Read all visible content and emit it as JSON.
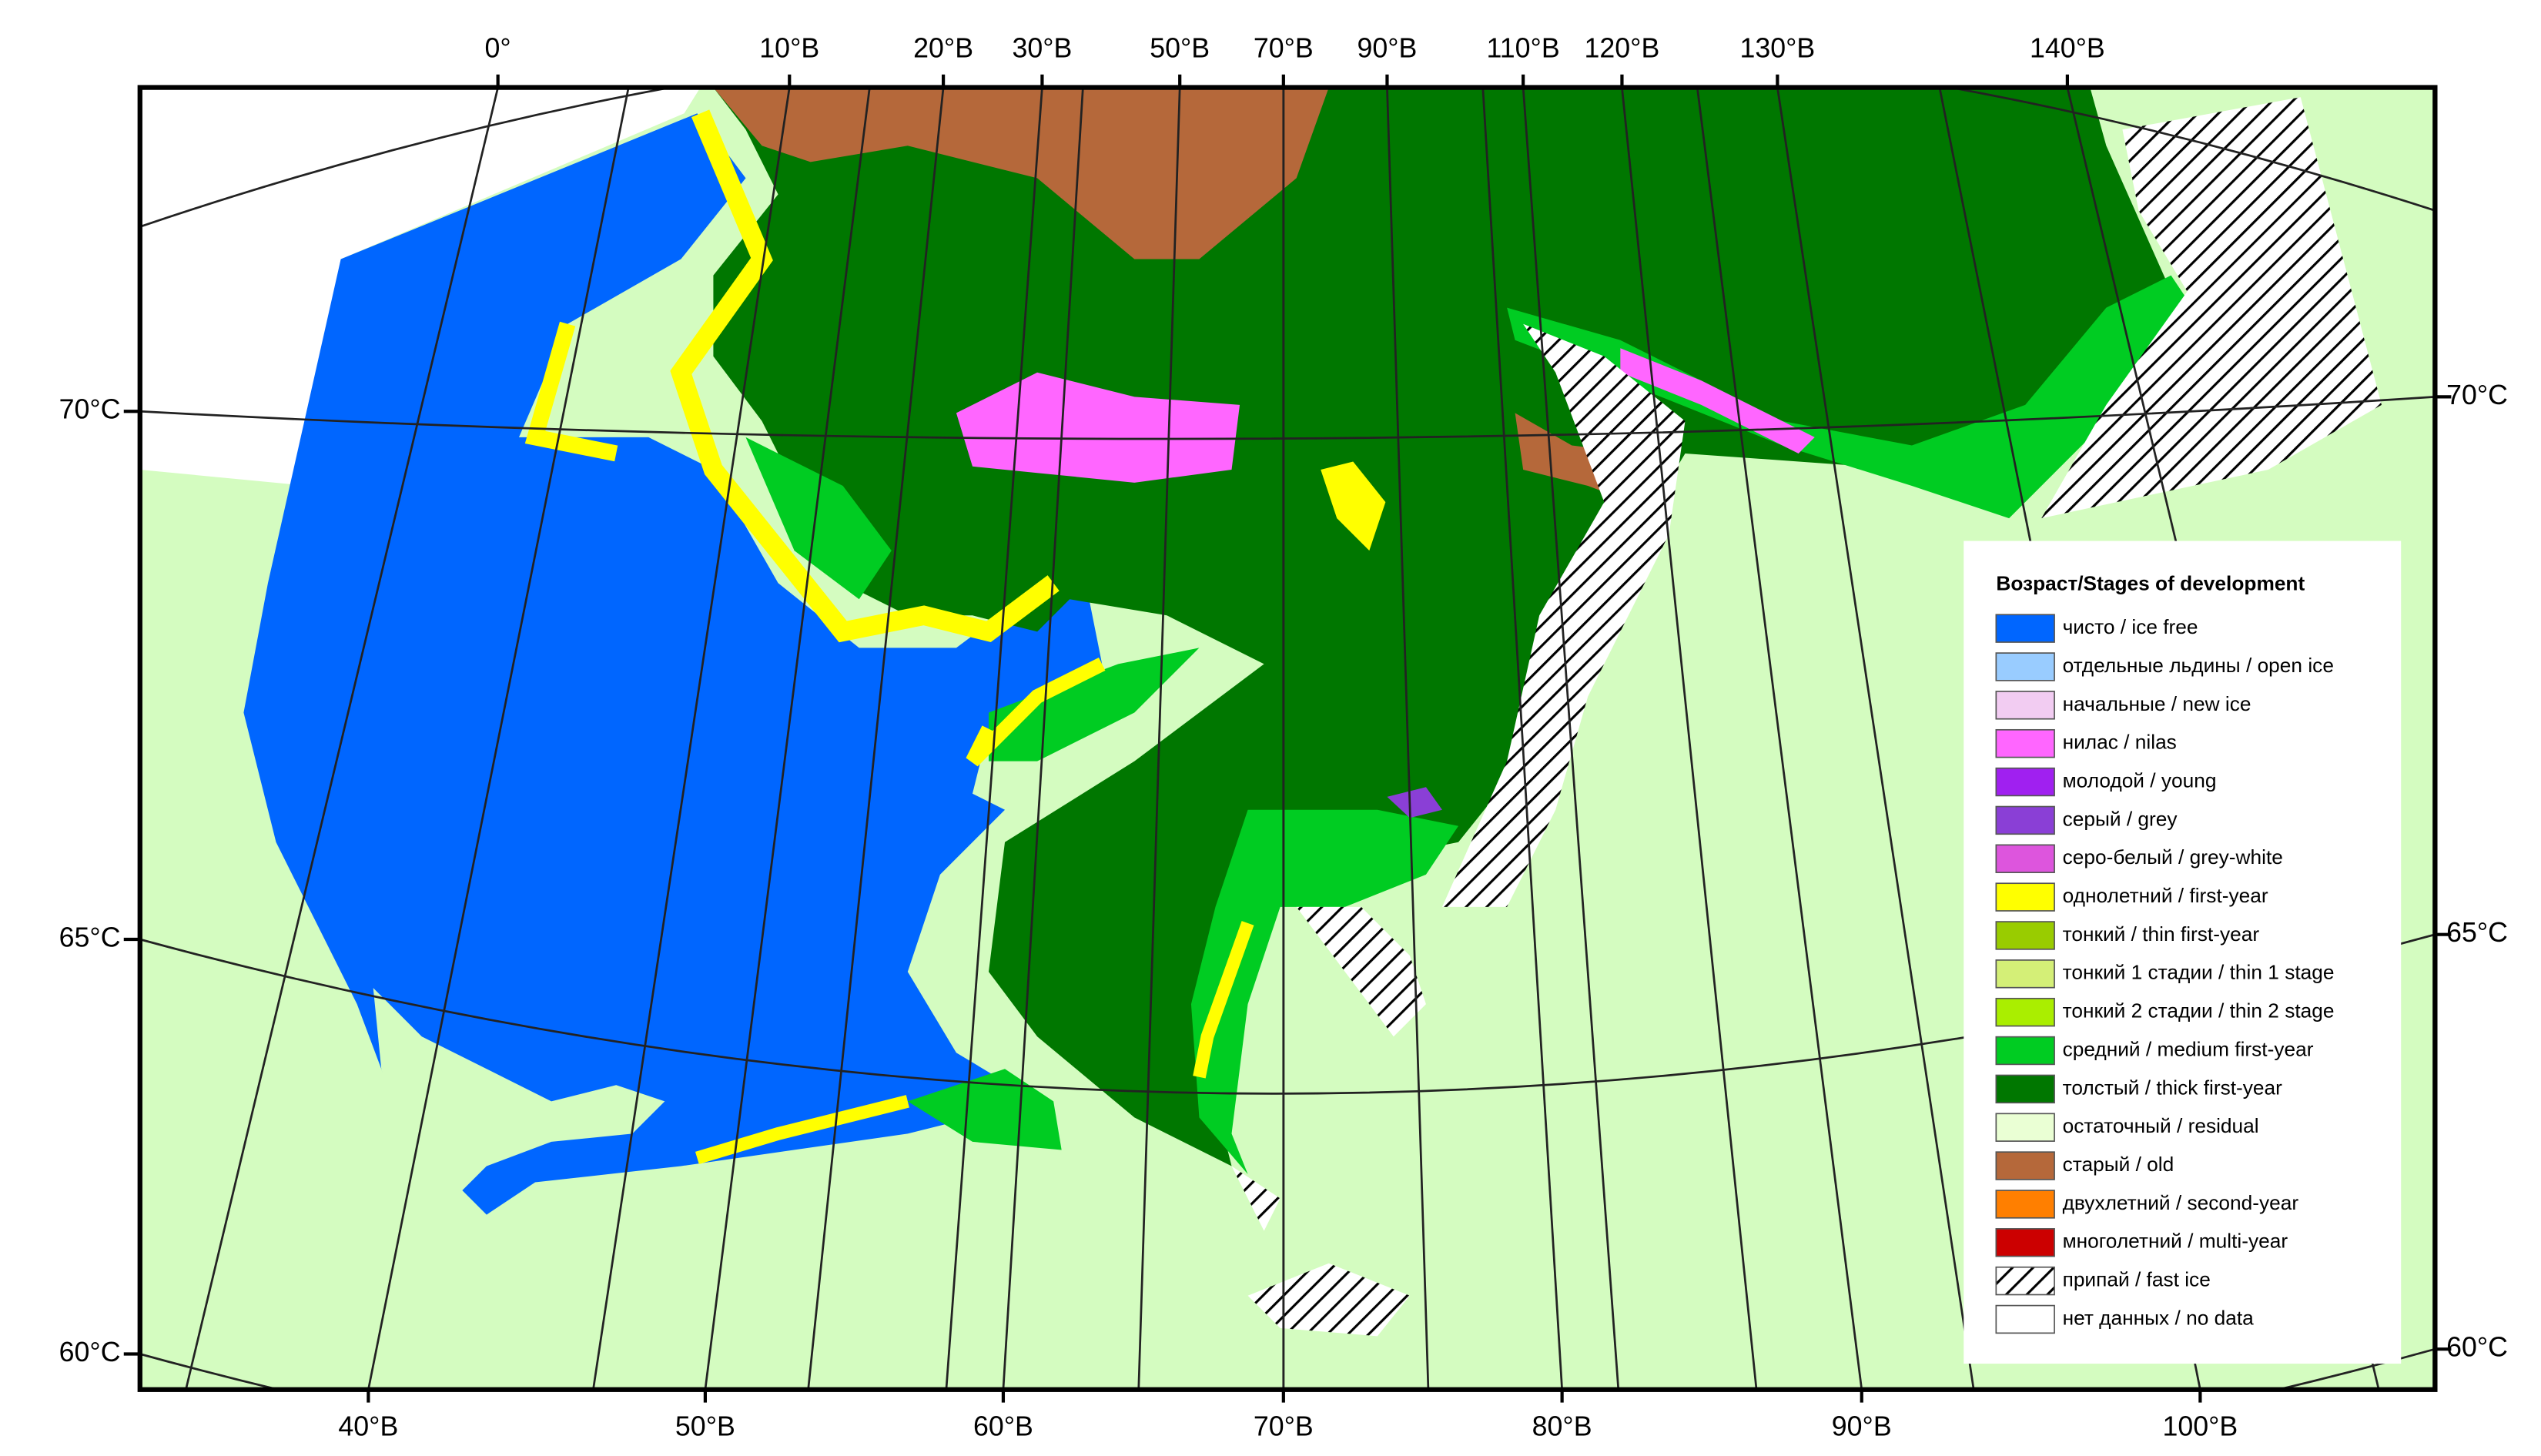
{
  "map": {
    "top_labels": [
      "0°",
      "10°В",
      "20°В",
      "30°В",
      "50°В",
      "70°В",
      "90°В",
      "110°В",
      "120°В",
      "130°В",
      "140°В"
    ],
    "bottom_labels": [
      "40°В",
      "50°В",
      "60°В",
      "70°В",
      "80°В",
      "90°В",
      "100°В"
    ],
    "left_labels": [
      "70°С",
      "65°С",
      "60°С"
    ],
    "right_labels": [
      "70°С",
      "65°С",
      "60°С"
    ]
  },
  "legend": {
    "title": "Возраст/Stages of development",
    "items": [
      {
        "label": "чисто / ice free",
        "color": "#0066ff"
      },
      {
        "label": "отдельные льдины / open ice",
        "color": "#99ccff"
      },
      {
        "label": "начальные / new ice",
        "color": "#f2ccf2"
      },
      {
        "label": "нилас / nilas",
        "color": "#ff66ff"
      },
      {
        "label": "молодой / young",
        "color": "#a020f0"
      },
      {
        "label": "серый / grey",
        "color": "#8a3fd6"
      },
      {
        "label": "серо-белый / grey-white",
        "color": "#dd55dd"
      },
      {
        "label": "однолетний / first-year",
        "color": "#ffff00"
      },
      {
        "label": "тонкий / thin first-year",
        "color": "#99cc00"
      },
      {
        "label": "тонкий 1 стадии / thin 1 stage",
        "color": "#d4ef77"
      },
      {
        "label": "тонкий 2 стадии / thin 2 stage",
        "color": "#aaee00"
      },
      {
        "label": "средний / medium first-year",
        "color": "#00cc22"
      },
      {
        "label": "толстый / thick first-year",
        "color": "#007700"
      },
      {
        "label": "остаточный / residual",
        "color": "#eaffd4"
      },
      {
        "label": "старый / old",
        "color": "#b5683a"
      },
      {
        "label": "двухлетний / second-year",
        "color": "#ff7f00"
      },
      {
        "label": "многолетний / multi-year",
        "color": "#cc0000"
      },
      {
        "label": "припай / fast ice",
        "color": "#ffffff",
        "hatched": true
      },
      {
        "label": "нет данных / no data",
        "color": "#ffffff"
      }
    ]
  }
}
